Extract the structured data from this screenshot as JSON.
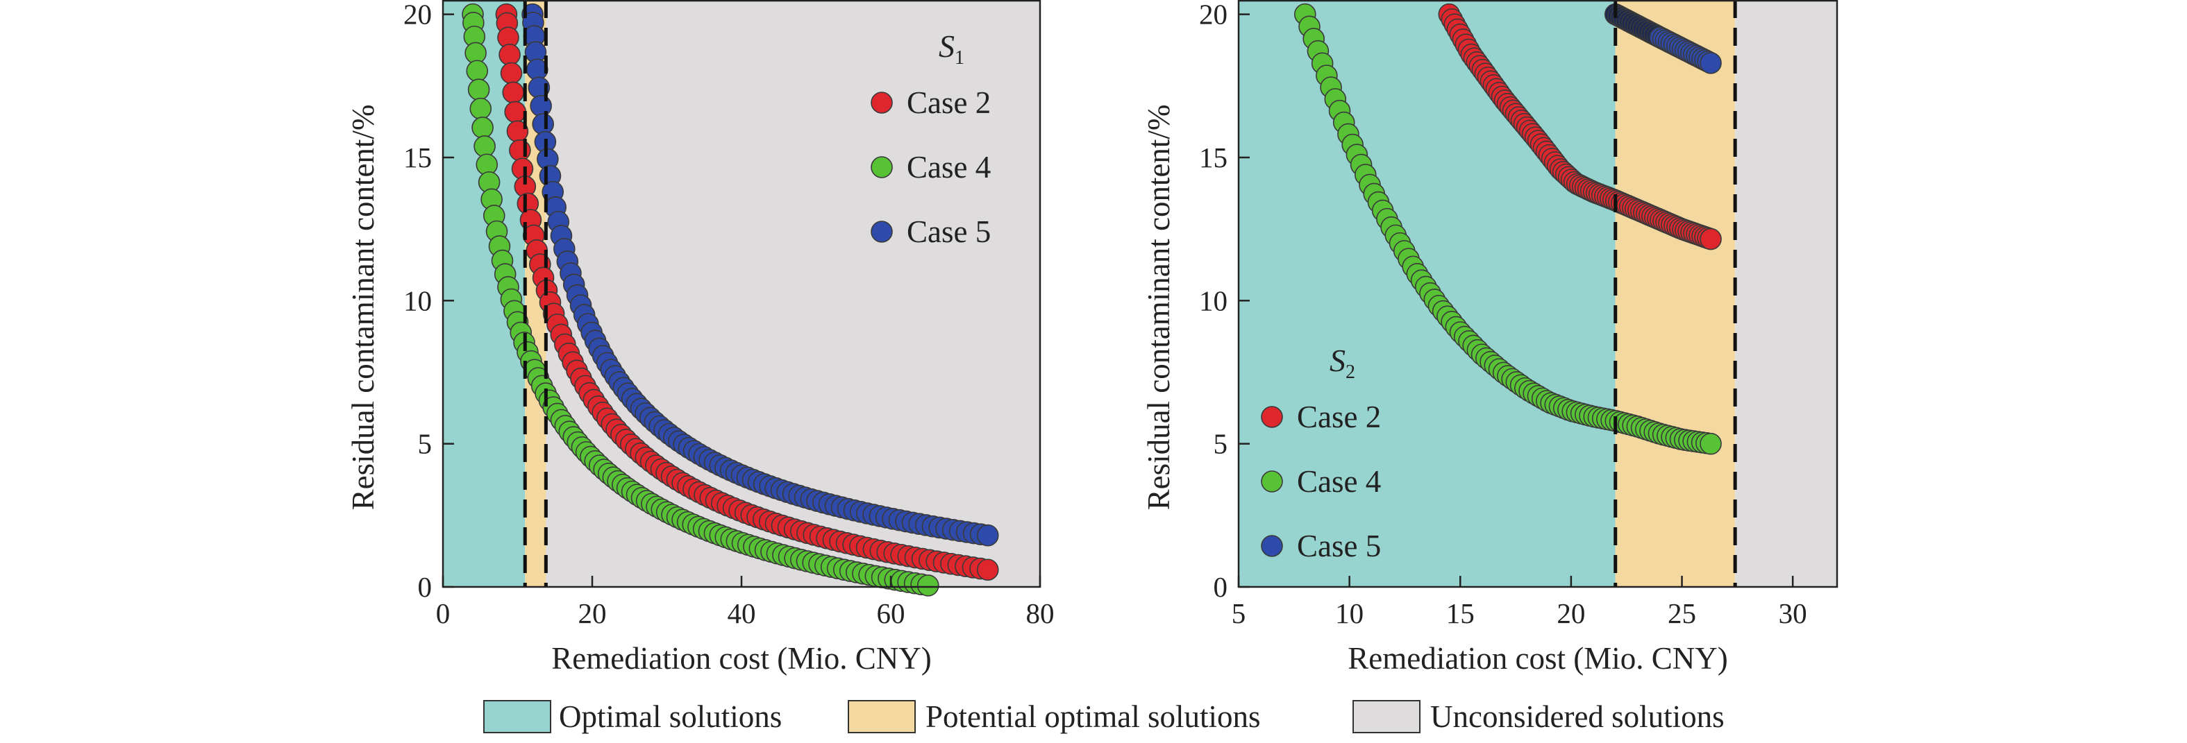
{
  "colors": {
    "optimal": "#97d4cf",
    "potential": "#f3d9a0",
    "unconsidered": "#dedcdc",
    "case2": "#e0262d",
    "case4": "#58c235",
    "case5": "#2e4bab",
    "case5_dark": "#1c2950",
    "outline": "#3a3a3a",
    "divider": "#111111"
  },
  "legend_bottom": [
    {
      "key": "optimal",
      "label": "Optimal solutions"
    },
    {
      "key": "potential",
      "label": "Potential optimal solutions"
    },
    {
      "key": "unconsidered",
      "label": "Unconsidered solutions"
    }
  ],
  "chart_data": [
    {
      "type": "scatter",
      "panel_label": "S",
      "panel_sub": "1",
      "xlabel": "Remediation cost (Mio. CNY)",
      "ylabel": "Residual contaminant content/%",
      "xlim": [
        0,
        80
      ],
      "ylim": [
        0,
        20.5
      ],
      "xticks": [
        0,
        20,
        40,
        60,
        80
      ],
      "yticks": [
        0,
        5,
        10,
        15,
        20
      ],
      "regions": [
        {
          "key": "optimal",
          "from": 0,
          "to": 11
        },
        {
          "key": "potential",
          "from": 11,
          "to": 13.8
        },
        {
          "key": "unconsidered",
          "from": 13.8,
          "to": 80
        }
      ],
      "dividers": [
        11,
        13.8
      ],
      "legend_position": "top-right",
      "series": [
        {
          "name": "Case 2",
          "color_key": "case2",
          "x_start": 8.5,
          "x_end": 73,
          "y_start": 20,
          "y_end": 0.6,
          "count": 95
        },
        {
          "name": "Case 4",
          "color_key": "case4",
          "x_start": 4,
          "x_end": 65,
          "y_start": 20,
          "y_end": 0.05,
          "count": 100
        },
        {
          "name": "Case 5",
          "color_key": "case5",
          "x_start": 12,
          "x_end": 73,
          "y_start": 20,
          "y_end": 1.8,
          "count": 95
        }
      ]
    },
    {
      "type": "scatter",
      "panel_label": "S",
      "panel_sub": "2",
      "xlabel": "Remediation cost (Mio. CNY)",
      "ylabel": "Residual contaminant content/%",
      "xlim": [
        5,
        32
      ],
      "ylim": [
        0,
        20.5
      ],
      "xticks": [
        5,
        10,
        15,
        20,
        25,
        30
      ],
      "yticks": [
        0,
        5,
        10,
        15,
        20
      ],
      "regions": [
        {
          "key": "optimal",
          "from": 5,
          "to": 22
        },
        {
          "key": "potential",
          "from": 22,
          "to": 27.4
        },
        {
          "key": "unconsidered",
          "from": 27.4,
          "to": 32
        }
      ],
      "dividers": [
        22,
        27.4
      ],
      "legend_position": "bottom-left",
      "series": [
        {
          "name": "Case 2",
          "color_key": "case2",
          "points": [
            [
              14.5,
              20
            ],
            [
              15.5,
              18.6
            ],
            [
              17,
              17.0
            ],
            [
              18.5,
              15.6
            ],
            [
              19.5,
              14.6
            ],
            [
              20.2,
              14.1
            ],
            [
              21,
              13.8
            ],
            [
              22,
              13.5
            ],
            [
              23.5,
              13.0
            ],
            [
              25,
              12.5
            ],
            [
              26.3,
              12.15
            ]
          ],
          "count": 95
        },
        {
          "name": "Case 4",
          "color_key": "case4",
          "points": [
            [
              8,
              20
            ],
            [
              9,
              17.8
            ],
            [
              10,
              15.7
            ],
            [
              11,
              13.9
            ],
            [
              12,
              12.4
            ],
            [
              13,
              11.0
            ],
            [
              14,
              9.85
            ],
            [
              15,
              8.9
            ],
            [
              16,
              8.1
            ],
            [
              17,
              7.45
            ],
            [
              18,
              6.9
            ],
            [
              19,
              6.45
            ],
            [
              20,
              6.15
            ],
            [
              21,
              5.95
            ],
            [
              22,
              5.8
            ],
            [
              23,
              5.6
            ],
            [
              24,
              5.35
            ],
            [
              25,
              5.15
            ],
            [
              26.3,
              5.0
            ]
          ],
          "count": 95
        },
        {
          "name": "Case 5",
          "color_key": "case5",
          "points": [
            [
              22,
              20
            ],
            [
              24,
              19.2
            ],
            [
              26.3,
              18.3
            ]
          ],
          "count": 35,
          "dark_until": 24
        }
      ]
    }
  ]
}
